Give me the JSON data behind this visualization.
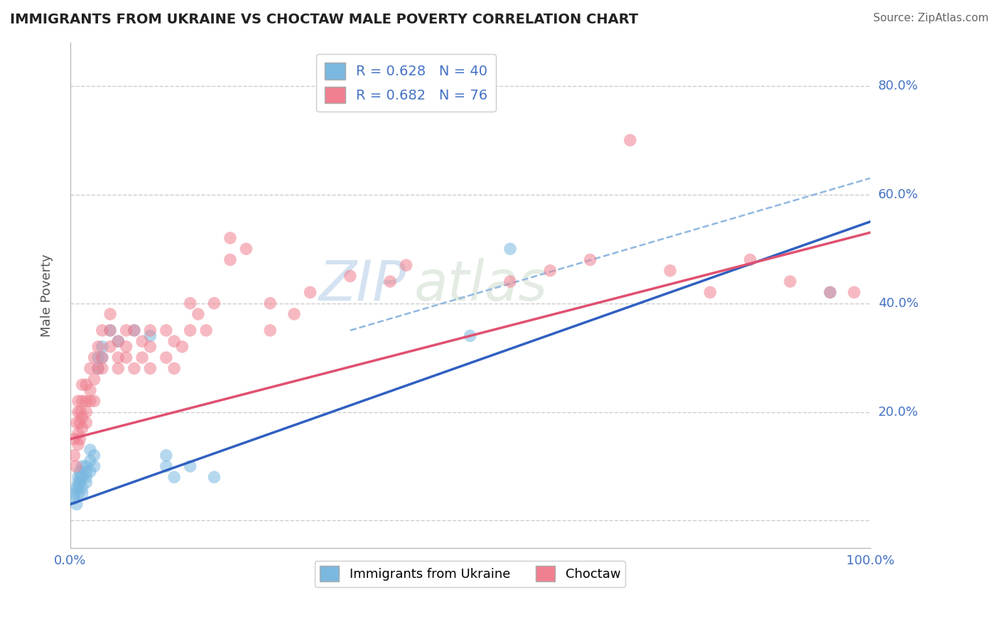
{
  "title": "IMMIGRANTS FROM UKRAINE VS CHOCTAW MALE POVERTY CORRELATION CHART",
  "source_text": "Source: ZipAtlas.com",
  "ylabel": "Male Poverty",
  "legend_entries": [
    {
      "label": "R = 0.628   N = 40",
      "color": "#aec6e8"
    },
    {
      "label": "R = 0.682   N = 76",
      "color": "#f4b8c1"
    }
  ],
  "legend_labels_bottom": [
    "Immigrants from Ukraine",
    "Choctaw"
  ],
  "xlim": [
    0.0,
    1.0
  ],
  "ylim": [
    -0.05,
    0.88
  ],
  "yticks": [
    0.0,
    0.2,
    0.4,
    0.6,
    0.8
  ],
  "xticks": [
    0.0,
    1.0
  ],
  "xtick_labels": [
    "0.0%",
    "100.0%"
  ],
  "ytick_labels_right": [
    "",
    "20.0%",
    "40.0%",
    "60.0%",
    "80.0%"
  ],
  "blue_color": "#7ab8e0",
  "pink_color": "#f08090",
  "blue_line_color": "#3060c0",
  "pink_line_color": "#e05070",
  "dashed_line_color": "#90b8e0",
  "watermark": "ZIPatlas",
  "watermark_color": "#c8d8e8",
  "background_color": "#ffffff",
  "title_color": "#222222",
  "source_color": "#666666",
  "tick_label_color": "#4472c4",
  "blue_scatter": [
    [
      0.005,
      0.04
    ],
    [
      0.005,
      0.05
    ],
    [
      0.007,
      0.06
    ],
    [
      0.008,
      0.03
    ],
    [
      0.01,
      0.07
    ],
    [
      0.01,
      0.08
    ],
    [
      0.01,
      0.05
    ],
    [
      0.01,
      0.06
    ],
    [
      0.012,
      0.09
    ],
    [
      0.012,
      0.07
    ],
    [
      0.013,
      0.08
    ],
    [
      0.015,
      0.1
    ],
    [
      0.015,
      0.08
    ],
    [
      0.015,
      0.06
    ],
    [
      0.015,
      0.05
    ],
    [
      0.02,
      0.09
    ],
    [
      0.02,
      0.1
    ],
    [
      0.02,
      0.08
    ],
    [
      0.02,
      0.07
    ],
    [
      0.025,
      0.11
    ],
    [
      0.025,
      0.13
    ],
    [
      0.025,
      0.09
    ],
    [
      0.03,
      0.12
    ],
    [
      0.03,
      0.1
    ],
    [
      0.035,
      0.3
    ],
    [
      0.035,
      0.28
    ],
    [
      0.04,
      0.3
    ],
    [
      0.04,
      0.32
    ],
    [
      0.05,
      0.35
    ],
    [
      0.06,
      0.33
    ],
    [
      0.08,
      0.35
    ],
    [
      0.1,
      0.34
    ],
    [
      0.12,
      0.1
    ],
    [
      0.12,
      0.12
    ],
    [
      0.13,
      0.08
    ],
    [
      0.15,
      0.1
    ],
    [
      0.18,
      0.08
    ],
    [
      0.5,
      0.34
    ],
    [
      0.55,
      0.5
    ],
    [
      0.95,
      0.42
    ]
  ],
  "pink_scatter": [
    [
      0.005,
      0.12
    ],
    [
      0.005,
      0.15
    ],
    [
      0.007,
      0.1
    ],
    [
      0.008,
      0.18
    ],
    [
      0.01,
      0.14
    ],
    [
      0.01,
      0.16
    ],
    [
      0.01,
      0.2
    ],
    [
      0.01,
      0.22
    ],
    [
      0.012,
      0.15
    ],
    [
      0.012,
      0.18
    ],
    [
      0.013,
      0.2
    ],
    [
      0.015,
      0.17
    ],
    [
      0.015,
      0.22
    ],
    [
      0.015,
      0.25
    ],
    [
      0.015,
      0.19
    ],
    [
      0.02,
      0.2
    ],
    [
      0.02,
      0.22
    ],
    [
      0.02,
      0.18
    ],
    [
      0.02,
      0.25
    ],
    [
      0.025,
      0.22
    ],
    [
      0.025,
      0.28
    ],
    [
      0.025,
      0.24
    ],
    [
      0.03,
      0.26
    ],
    [
      0.03,
      0.22
    ],
    [
      0.03,
      0.3
    ],
    [
      0.035,
      0.28
    ],
    [
      0.035,
      0.32
    ],
    [
      0.04,
      0.3
    ],
    [
      0.04,
      0.35
    ],
    [
      0.04,
      0.28
    ],
    [
      0.05,
      0.32
    ],
    [
      0.05,
      0.38
    ],
    [
      0.05,
      0.35
    ],
    [
      0.06,
      0.3
    ],
    [
      0.06,
      0.33
    ],
    [
      0.06,
      0.28
    ],
    [
      0.07,
      0.35
    ],
    [
      0.07,
      0.3
    ],
    [
      0.07,
      0.32
    ],
    [
      0.08,
      0.35
    ],
    [
      0.08,
      0.28
    ],
    [
      0.09,
      0.33
    ],
    [
      0.09,
      0.3
    ],
    [
      0.1,
      0.32
    ],
    [
      0.1,
      0.35
    ],
    [
      0.1,
      0.28
    ],
    [
      0.12,
      0.35
    ],
    [
      0.12,
      0.3
    ],
    [
      0.13,
      0.33
    ],
    [
      0.13,
      0.28
    ],
    [
      0.14,
      0.32
    ],
    [
      0.15,
      0.35
    ],
    [
      0.15,
      0.4
    ],
    [
      0.16,
      0.38
    ],
    [
      0.17,
      0.35
    ],
    [
      0.18,
      0.4
    ],
    [
      0.2,
      0.52
    ],
    [
      0.2,
      0.48
    ],
    [
      0.22,
      0.5
    ],
    [
      0.25,
      0.4
    ],
    [
      0.25,
      0.35
    ],
    [
      0.28,
      0.38
    ],
    [
      0.3,
      0.42
    ],
    [
      0.35,
      0.45
    ],
    [
      0.4,
      0.44
    ],
    [
      0.42,
      0.47
    ],
    [
      0.55,
      0.44
    ],
    [
      0.6,
      0.46
    ],
    [
      0.65,
      0.48
    ],
    [
      0.7,
      0.7
    ],
    [
      0.75,
      0.46
    ],
    [
      0.8,
      0.42
    ],
    [
      0.85,
      0.48
    ],
    [
      0.9,
      0.44
    ],
    [
      0.95,
      0.42
    ],
    [
      0.98,
      0.42
    ]
  ],
  "blue_line": [
    0.0,
    0.03,
    1.0,
    0.55
  ],
  "pink_line": [
    0.0,
    0.15,
    1.0,
    0.53
  ],
  "dashed_line": [
    0.35,
    0.35,
    1.0,
    0.63
  ]
}
